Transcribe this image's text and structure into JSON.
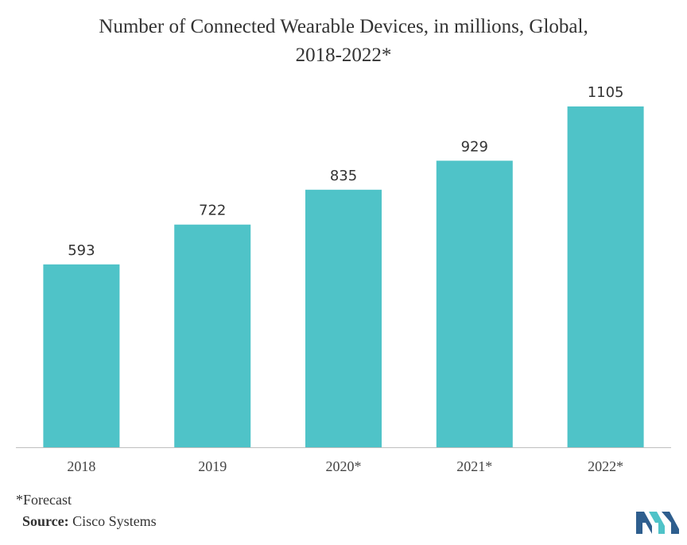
{
  "chart_data": {
    "type": "bar",
    "title_lines": [
      "Number of Connected Wearable Devices, in millions, Global,",
      "2018-2022*"
    ],
    "categories": [
      "2018",
      "2019",
      "2020*",
      "2021*",
      "2022*"
    ],
    "values": [
      593,
      722,
      835,
      929,
      1105
    ],
    "value_labels": [
      "593",
      "722",
      "835",
      "929",
      "1105"
    ],
    "xlabel": "",
    "ylabel": "",
    "ylim": [
      0,
      1105
    ],
    "grid": false,
    "legend": "none",
    "bar_color": "#4FC3C8",
    "axis_color": "#bfbfbf"
  },
  "footnote": "*Forecast",
  "source": {
    "label": "Source:",
    "text": "Cisco Systems"
  },
  "logo": {
    "icon": "company-logo-icon",
    "colors": [
      "#2E5E8E",
      "#4FC3C8"
    ]
  }
}
